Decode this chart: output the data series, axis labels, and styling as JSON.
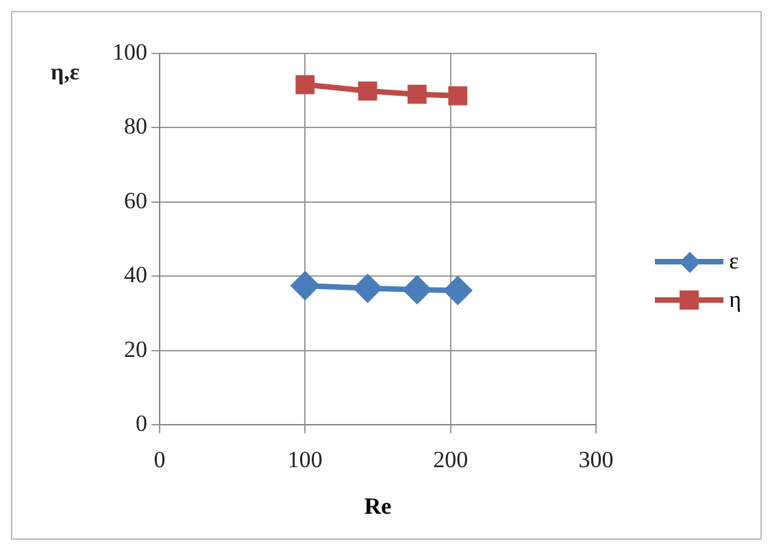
{
  "chart_data": {
    "type": "line",
    "ylabel": "η,ε",
    "xlabel": "Re",
    "series": [
      {
        "name": "ε",
        "color": "#4a7ebb",
        "marker": "diamond",
        "x": [
          100,
          143,
          177,
          205
        ],
        "values": [
          37.5,
          36.8,
          36.4,
          36.2
        ]
      },
      {
        "name": "η",
        "color": "#be4b48",
        "marker": "square",
        "x": [
          100,
          143,
          177,
          205
        ],
        "values": [
          91.6,
          89.9,
          89,
          88.6
        ]
      }
    ],
    "xlim": [
      0,
      300
    ],
    "xticks": [
      0,
      100,
      200,
      300
    ],
    "ylim": [
      0,
      100
    ],
    "yticks": [
      0,
      20,
      40,
      60,
      80,
      100
    ],
    "grid": true,
    "legend": "right",
    "line_style": "solid"
  }
}
